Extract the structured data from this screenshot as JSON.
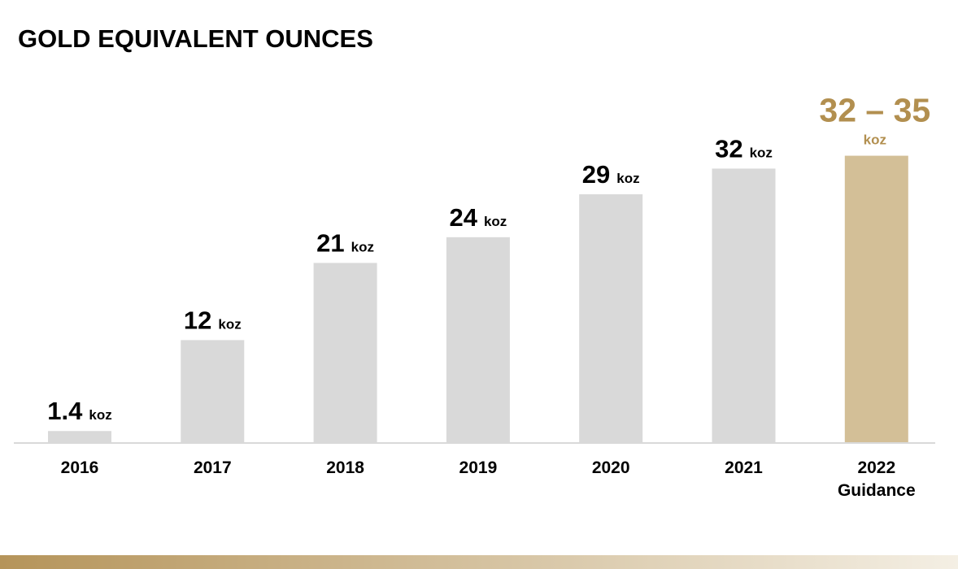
{
  "page": {
    "title": "GOLD EQUIVALENT OUNCES"
  },
  "colors": {
    "bar": "#d9d9d9",
    "highlight_bar": "#d3bf97",
    "highlight_text": "#b28f4f",
    "text": "#000000",
    "baseline": "#d9d9d9",
    "band_left": "#b5945a",
    "band_right": "#f4efe4"
  },
  "chart_data": {
    "type": "bar",
    "title": "GOLD EQUIVALENT OUNCES",
    "xlabel": "",
    "ylabel": "",
    "ylim": [
      0,
      35
    ],
    "grid": false,
    "unit": "koz",
    "categories": [
      "2016",
      "2017",
      "2018",
      "2019",
      "2020",
      "2021",
      "2022 Guidance"
    ],
    "values": [
      1.4,
      12,
      21,
      24,
      29,
      32,
      33.5
    ],
    "value_labels": [
      "1.4",
      "12",
      "21",
      "24",
      "29",
      "32",
      "32 – 35"
    ],
    "range": {
      "category": "2022 Guidance",
      "low": 32,
      "high": 35
    },
    "highlight_index": 6
  }
}
